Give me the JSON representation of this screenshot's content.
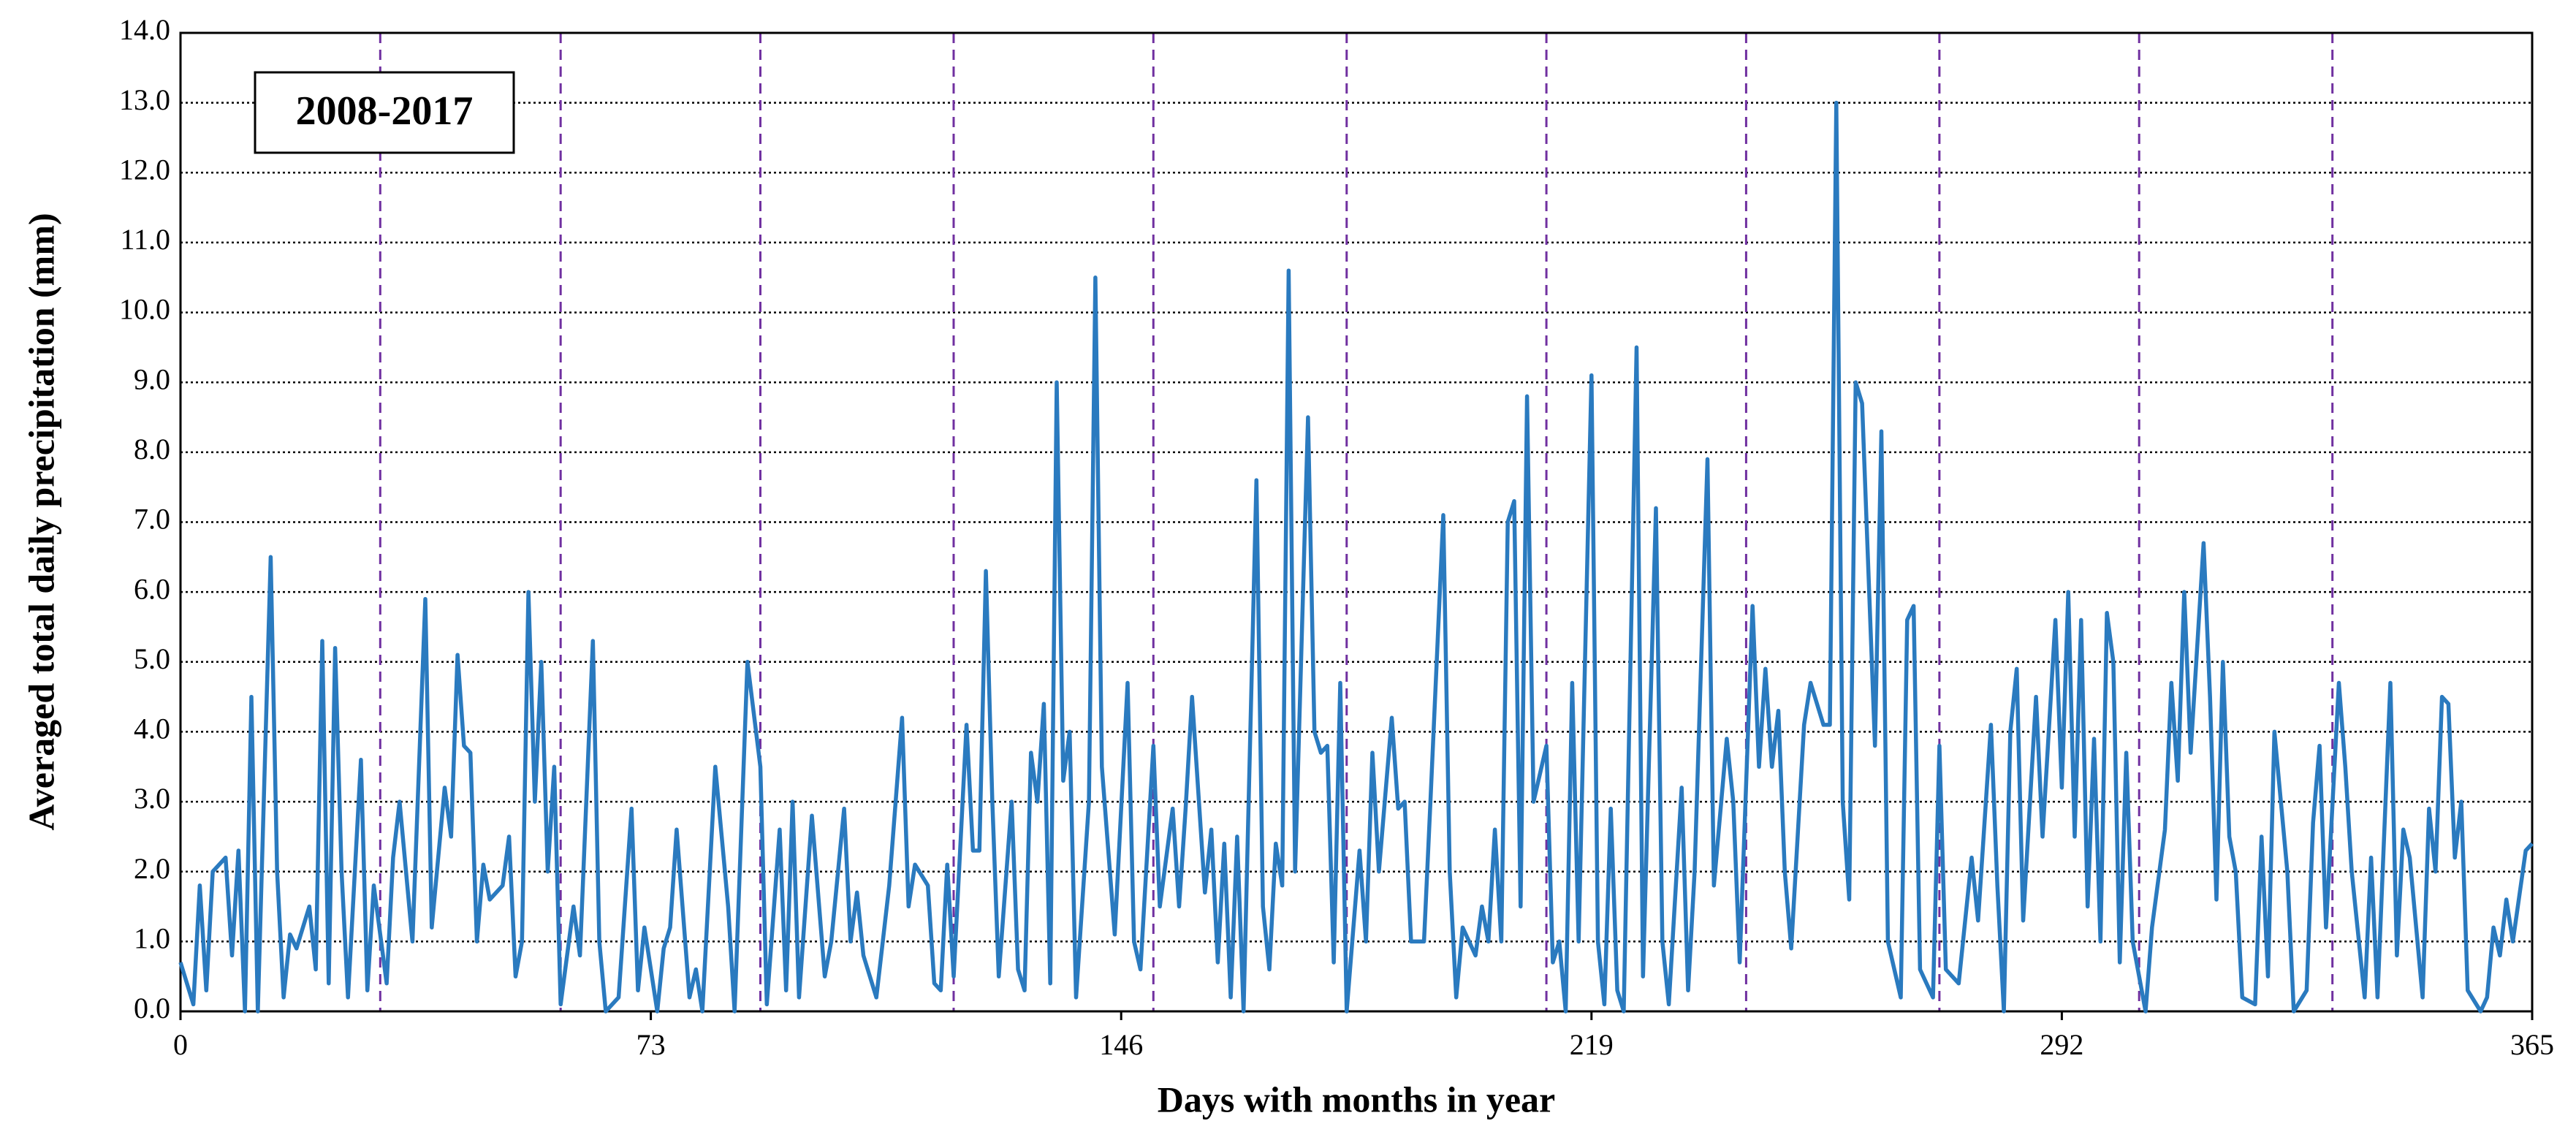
{
  "chart_data": {
    "type": "line",
    "annotation": "2008-2017",
    "xlabel": "Days with months in year",
    "ylabel": "Averaged total daily precipitation (mm)",
    "xlim": [
      0,
      365
    ],
    "xticks": [
      0,
      73,
      146,
      219,
      292,
      365
    ],
    "ylim": [
      0,
      14
    ],
    "yticks": [
      {
        "value": 0,
        "label": "0.0"
      },
      {
        "value": 1,
        "label": "1.0"
      },
      {
        "value": 2,
        "label": "2.0"
      },
      {
        "value": 3,
        "label": "3.0"
      },
      {
        "value": 4,
        "label": "4.0"
      },
      {
        "value": 5,
        "label": "5.0"
      },
      {
        "value": 6,
        "label": "6.0"
      },
      {
        "value": 7,
        "label": "7.0"
      },
      {
        "value": 8,
        "label": "8.0"
      },
      {
        "value": 9,
        "label": "9.0"
      },
      {
        "value": 10,
        "label": "10.0"
      },
      {
        "value": 11,
        "label": "11.0"
      },
      {
        "value": 12,
        "label": "12.0"
      },
      {
        "value": 13,
        "label": "13.0"
      },
      {
        "value": 14,
        "label": "14.0"
      }
    ],
    "grid": true,
    "grid_color": "#000000",
    "month_boundaries": [
      31,
      59,
      90,
      120,
      151,
      181,
      212,
      243,
      273,
      304,
      334
    ],
    "month_line_color": "#7030a0",
    "color": "#2a7abf",
    "x": [
      0,
      2,
      3,
      4,
      5,
      7,
      8,
      9,
      10,
      11,
      12,
      14,
      15,
      16,
      17,
      18,
      20,
      21,
      22,
      23,
      24,
      25,
      26,
      28,
      29,
      30,
      32,
      33,
      34,
      36,
      38,
      39,
      41,
      42,
      43,
      44,
      45,
      46,
      47,
      48,
      50,
      51,
      52,
      53,
      54,
      55,
      56,
      57,
      58,
      59,
      61,
      62,
      64,
      65,
      66,
      68,
      70,
      71,
      72,
      74,
      75,
      76,
      77,
      79,
      80,
      81,
      83,
      85,
      86,
      88,
      90,
      91,
      93,
      94,
      95,
      96,
      98,
      100,
      101,
      103,
      104,
      105,
      106,
      108,
      109,
      110,
      112,
      113,
      114,
      116,
      117,
      118,
      119,
      120,
      122,
      123,
      124,
      125,
      126,
      127,
      129,
      130,
      131,
      132,
      133,
      134,
      135,
      136,
      137,
      138,
      139,
      141,
      142,
      143,
      145,
      147,
      148,
      149,
      151,
      152,
      154,
      155,
      156,
      157,
      159,
      160,
      161,
      162,
      163,
      164,
      165,
      167,
      168,
      169,
      170,
      171,
      172,
      173,
      175,
      176,
      177,
      178,
      179,
      180,
      181,
      183,
      184,
      185,
      186,
      188,
      189,
      190,
      191,
      193,
      194,
      196,
      197,
      198,
      199,
      201,
      202,
      203,
      204,
      205,
      206,
      207,
      208,
      209,
      210,
      212,
      213,
      214,
      215,
      216,
      217,
      219,
      220,
      221,
      222,
      223,
      224,
      226,
      227,
      229,
      230,
      231,
      233,
      234,
      235,
      237,
      238,
      240,
      241,
      242,
      244,
      245,
      246,
      247,
      248,
      249,
      250,
      252,
      253,
      255,
      256,
      257,
      258,
      259,
      260,
      261,
      263,
      264,
      265,
      267,
      268,
      269,
      270,
      272,
      273,
      274,
      276,
      278,
      279,
      281,
      282,
      283,
      284,
      285,
      286,
      288,
      289,
      291,
      292,
      293,
      294,
      295,
      296,
      297,
      298,
      299,
      300,
      301,
      302,
      303,
      305,
      306,
      308,
      309,
      310,
      311,
      312,
      314,
      315,
      316,
      317,
      318,
      319,
      320,
      322,
      323,
      324,
      325,
      327,
      328,
      330,
      331,
      332,
      333,
      335,
      336,
      337,
      339,
      340,
      341,
      343,
      344,
      345,
      346,
      348,
      349,
      350,
      351,
      352,
      353,
      354,
      355,
      357,
      358,
      359,
      360,
      361,
      362,
      364,
      365
    ],
    "values": [
      0.7,
      0.1,
      1.8,
      0.3,
      2.0,
      2.2,
      0.8,
      2.3,
      0.0,
      4.5,
      0.0,
      6.5,
      2.0,
      0.2,
      1.1,
      0.9,
      1.5,
      0.6,
      5.3,
      0.4,
      5.2,
      2.0,
      0.2,
      3.6,
      0.3,
      1.8,
      0.4,
      2.2,
      3.0,
      1.0,
      5.9,
      1.2,
      3.2,
      2.5,
      5.1,
      3.8,
      3.7,
      1.0,
      2.1,
      1.6,
      1.8,
      2.5,
      0.5,
      1.0,
      6.0,
      3.0,
      5.0,
      2.0,
      3.5,
      0.1,
      1.5,
      0.8,
      5.3,
      1.0,
      0.0,
      0.2,
      2.9,
      0.3,
      1.2,
      0.0,
      0.9,
      1.2,
      2.6,
      0.2,
      0.6,
      0.0,
      3.5,
      1.5,
      0.0,
      5.0,
      3.5,
      0.1,
      2.6,
      0.3,
      3.0,
      0.2,
      2.8,
      0.5,
      1.0,
      2.9,
      1.0,
      1.7,
      0.8,
      0.2,
      1.0,
      1.8,
      4.2,
      1.5,
      2.1,
      1.8,
      0.4,
      0.3,
      2.1,
      0.5,
      4.1,
      2.3,
      2.3,
      6.3,
      3.0,
      0.5,
      3.0,
      0.6,
      0.3,
      3.7,
      3.0,
      4.4,
      0.4,
      9.0,
      3.3,
      4.0,
      0.2,
      3.0,
      10.5,
      3.5,
      1.1,
      4.7,
      1.0,
      0.6,
      3.8,
      1.5,
      2.9,
      1.5,
      2.9,
      4.5,
      1.7,
      2.6,
      0.7,
      2.4,
      0.2,
      2.5,
      0.0,
      7.6,
      1.5,
      0.6,
      2.4,
      1.8,
      10.6,
      2.0,
      8.5,
      4.0,
      3.7,
      3.8,
      0.7,
      4.7,
      0.0,
      2.3,
      1.0,
      3.7,
      2.0,
      4.2,
      2.9,
      3.0,
      1.0,
      1.0,
      3.0,
      7.1,
      2.0,
      0.2,
      1.2,
      0.8,
      1.5,
      1.0,
      2.6,
      1.0,
      7.0,
      7.3,
      1.5,
      8.8,
      3.0,
      3.8,
      0.7,
      1.0,
      0.0,
      4.7,
      1.0,
      9.1,
      1.0,
      0.1,
      2.9,
      0.3,
      0.0,
      9.5,
      0.5,
      7.2,
      1.0,
      0.1,
      3.2,
      0.3,
      2.0,
      7.9,
      1.8,
      3.9,
      3.0,
      0.7,
      5.8,
      3.5,
      4.9,
      3.5,
      4.3,
      2.0,
      0.9,
      4.1,
      4.7,
      4.1,
      4.1,
      13.0,
      3.0,
      1.6,
      9.0,
      8.7,
      3.8,
      8.3,
      1.0,
      0.2,
      5.6,
      5.8,
      0.6,
      0.2,
      3.8,
      0.6,
      0.4,
      2.2,
      1.3,
      4.1,
      1.8,
      0.0,
      4.0,
      4.9,
      1.3,
      4.5,
      2.5,
      5.6,
      3.2,
      6.0,
      2.5,
      5.6,
      1.5,
      3.9,
      1.0,
      5.7,
      5.0,
      0.7,
      3.7,
      1.0,
      0.0,
      1.2,
      2.6,
      4.7,
      3.3,
      6.0,
      3.7,
      6.7,
      4.5,
      1.6,
      5.0,
      2.5,
      2.0,
      0.2,
      0.1,
      2.5,
      0.5,
      4.0,
      2.0,
      0.0,
      0.3,
      2.7,
      3.8,
      1.2,
      4.7,
      3.5,
      2.0,
      0.2,
      2.2,
      0.2,
      4.7,
      0.8,
      2.6,
      2.2,
      0.2,
      2.9,
      2.0,
      4.5,
      4.4,
      2.2,
      3.0,
      0.3,
      0.0,
      0.2,
      1.2,
      0.8,
      1.6,
      1.0,
      2.3,
      2.4
    ]
  }
}
